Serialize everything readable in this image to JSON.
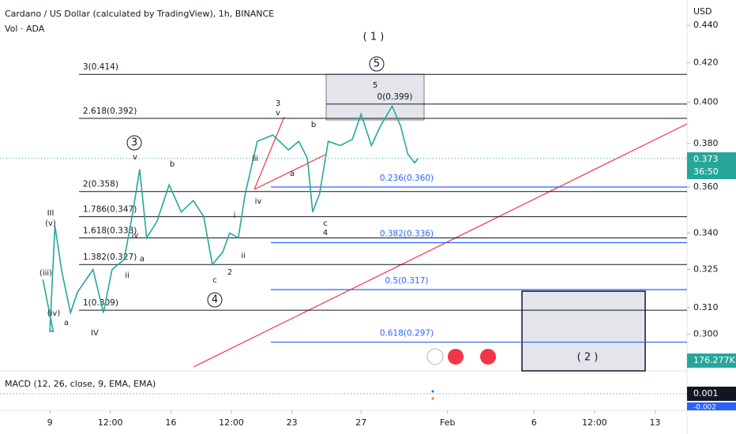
{
  "chart_data": {
    "type": "line",
    "title": "Cardano / US Dollar (calculated by TradingView), 1h, BINANCE",
    "subtitle": "Vol · ADA",
    "y_axis_label": "USD",
    "log_scale": true,
    "ylim": [
      0.288,
      0.454
    ],
    "yticks": [
      {
        "value": 0.44,
        "label": "0.440"
      },
      {
        "value": 0.42,
        "label": "0.420"
      },
      {
        "value": 0.4,
        "label": "0.400"
      },
      {
        "value": 0.38,
        "label": "0.380"
      },
      {
        "value": 0.36,
        "label": "0.360"
      },
      {
        "value": 0.34,
        "label": "0.340"
      },
      0.325,
      {
        "value": 0.31,
        "label": "0.310"
      },
      {
        "value": 0.3,
        "label": "0.300"
      }
    ],
    "xlim": [
      6.12,
      45.85
    ],
    "xticks": [
      9,
      {
        "value": 12.5,
        "label": "12:00"
      },
      16,
      {
        "value": 19.5,
        "label": "12:00"
      },
      23,
      27,
      {
        "value": 32,
        "label": "Feb"
      },
      {
        "value": 37,
        "label": "6"
      },
      {
        "value": 40.5,
        "label": "12:00"
      },
      {
        "value": 44,
        "label": "13"
      }
    ],
    "price": {
      "color": "#26a69a",
      "x": [
        8.6,
        9.2,
        9.0,
        9.3,
        9.3,
        9.7,
        10.2,
        10.6,
        11.5,
        12.1,
        12.6,
        13.3,
        13.8,
        13.8,
        14.2,
        14.6,
        15.2,
        15.9,
        16.6,
        17.3,
        17.9,
        18.4,
        19.0,
        19.4,
        19.9,
        20.3,
        21.0,
        21.9,
        22.8,
        23.4,
        23.9,
        24.2,
        24.6,
        25.1,
        25.8,
        26.5,
        27.0,
        27.6,
        28.1,
        28.8,
        29.3,
        29.7,
        30.1,
        30.3
      ],
      "values": [
        0.321,
        0.301,
        0.301,
        0.343,
        0.343,
        0.324,
        0.308,
        0.316,
        0.325,
        0.308,
        0.325,
        0.329,
        0.349,
        0.349,
        0.368,
        0.338,
        0.345,
        0.361,
        0.349,
        0.354,
        0.347,
        0.327,
        0.332,
        0.34,
        0.338,
        0.357,
        0.381,
        0.384,
        0.377,
        0.381,
        0.373,
        0.349,
        0.357,
        0.381,
        0.379,
        0.382,
        0.394,
        0.379,
        0.388,
        0.398,
        0.388,
        0.375,
        0.371,
        0.373
      ]
    },
    "fib_black": [
      {
        "label": "3(0.414)",
        "value": 0.414
      },
      {
        "label": "2.618(0.392)",
        "value": 0.392
      },
      {
        "label": "2(0.358)",
        "value": 0.358
      },
      {
        "label": "1.786(0.347)",
        "value": 0.347
      },
      {
        "label": "1.618(0.338)",
        "value": 0.338
      },
      {
        "label": "1.382(0.327)",
        "value": 0.327
      },
      {
        "label": "1(0.309)",
        "value": 0.309
      },
      {
        "label": "0(0.399)",
        "value": 0.399
      }
    ],
    "fib_blue": [
      {
        "label": "0.236(0.360)",
        "value": 0.36
      },
      {
        "label": "0.382(0.336)",
        "value": 0.336
      },
      {
        "label": "0.5(0.317)",
        "value": 0.317
      },
      {
        "label": "0.618(0.297)",
        "value": 0.297
      }
    ],
    "last_price": {
      "value": 0.373,
      "countdown": "36:50"
    },
    "volume_label": "176.277K",
    "macd": {
      "title": "MACD (12, 26, close, 9, EMA, EMA)",
      "value_labels": [
        "0.001",
        "-0.002"
      ],
      "values": [
        0.001,
        -0.002
      ]
    },
    "wave_labels": [
      "( 1 )",
      "5",
      "3",
      "4",
      "( 2 )",
      "III",
      "(v)",
      "(iii)",
      "(iv)",
      "a",
      "IV",
      "v",
      "b",
      "a",
      "iv",
      "ii",
      "c",
      "2",
      "i",
      "ii",
      "iii",
      "iv",
      "a",
      "b",
      "3",
      "v",
      "c",
      "4",
      "5"
    ]
  }
}
